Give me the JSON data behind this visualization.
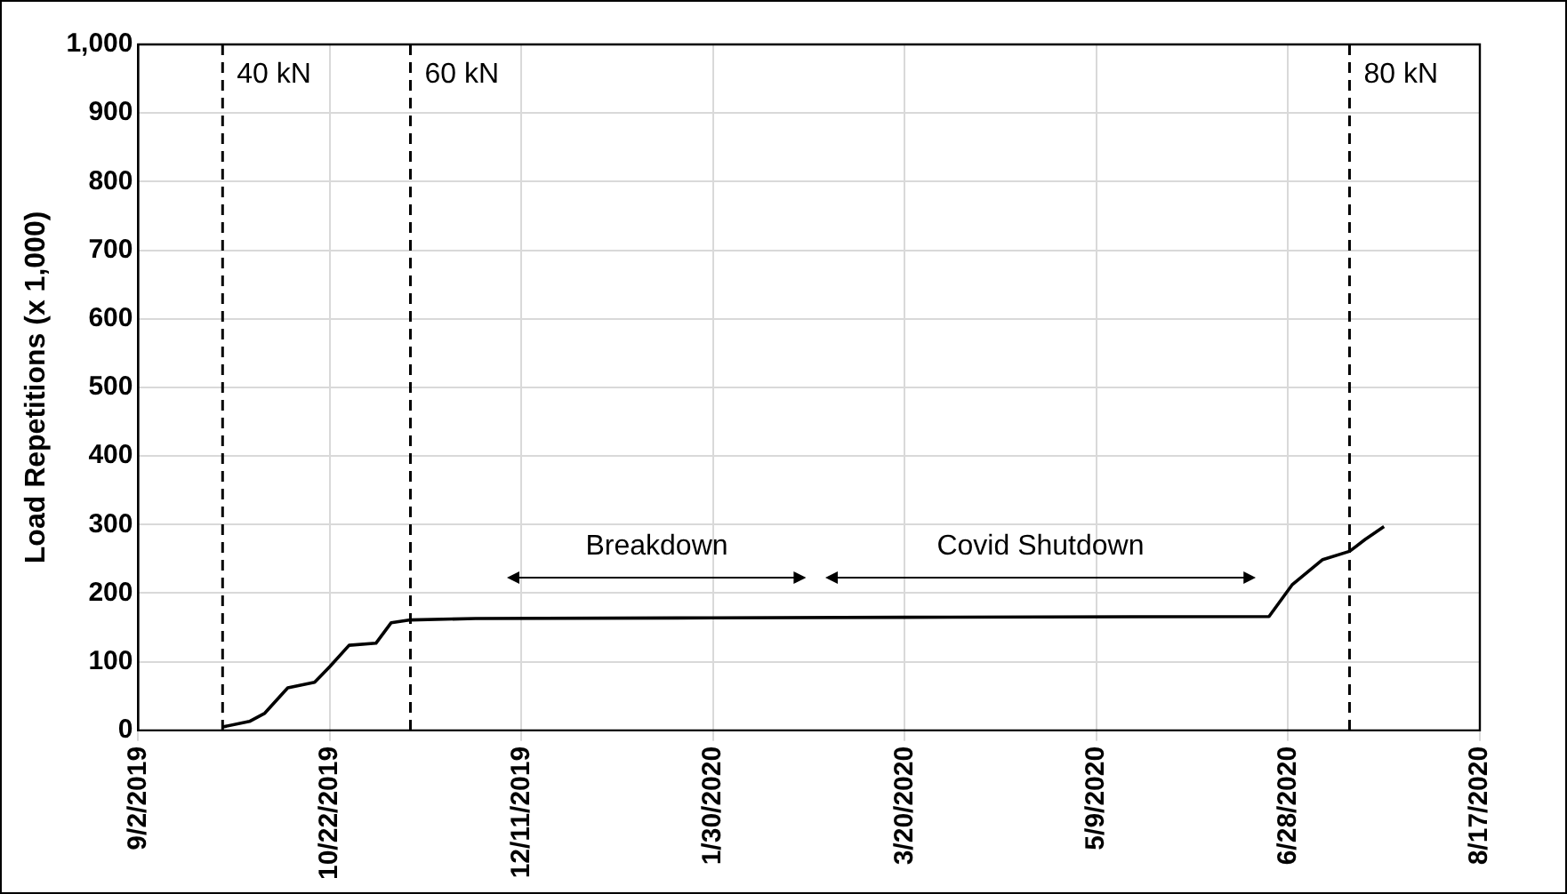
{
  "chart_data": {
    "type": "line",
    "ylabel": "Load Repetitions (x 1,000)",
    "x": [
      "2019-09-24",
      "2019-10-01",
      "2019-10-05",
      "2019-10-11",
      "2019-10-18",
      "2019-10-22",
      "2019-10-27",
      "2019-11-03",
      "2019-11-07",
      "2019-11-12",
      "2019-11-29",
      "2020-01-30",
      "2020-04-01",
      "2020-06-23",
      "2020-06-29",
      "2020-07-07",
      "2020-07-14",
      "2020-07-18",
      "2020-07-23"
    ],
    "series": [
      {
        "color": "#000000",
        "values": [
          5,
          13,
          25,
          62,
          70,
          93,
          124,
          127,
          157,
          161,
          163,
          164,
          165,
          166,
          212,
          249,
          261,
          278,
          297
        ]
      }
    ],
    "xlim": [
      "2019-09-02",
      "2020-08-17"
    ],
    "xticks": [
      {
        "value": "2019-09-02",
        "label": "9/2/2019"
      },
      {
        "value": "2019-10-22",
        "label": "10/22/2019"
      },
      {
        "value": "2019-12-11",
        "label": "12/11/2019"
      },
      {
        "value": "2020-01-30",
        "label": "1/30/2020"
      },
      {
        "value": "2020-03-20",
        "label": "3/20/2020"
      },
      {
        "value": "2020-05-09",
        "label": "5/9/2020"
      },
      {
        "value": "2020-06-28",
        "label": "6/28/2020"
      },
      {
        "value": "2020-08-17",
        "label": "8/17/2020"
      }
    ],
    "ylim": [
      0,
      1000
    ],
    "yticks": [
      0,
      100,
      200,
      300,
      400,
      500,
      600,
      700,
      800,
      900,
      {
        "value": 1000,
        "label": "1,000"
      }
    ],
    "grid": true,
    "marker": "none",
    "line_style": "solid",
    "ref_lines": [
      {
        "axis": "x",
        "value": "2019-09-24",
        "label": "40 kN",
        "color": "#000000",
        "line_style": "dashed"
      },
      {
        "axis": "x",
        "value": "2019-11-12",
        "label": "60 kN",
        "color": "#000000",
        "line_style": "dashed"
      },
      {
        "axis": "x",
        "value": "2020-07-14",
        "label": "80 kN",
        "color": "#000000",
        "line_style": "dashed"
      }
    ],
    "annotations": [
      "Breakdown",
      "Covid Shutdown"
    ]
  }
}
